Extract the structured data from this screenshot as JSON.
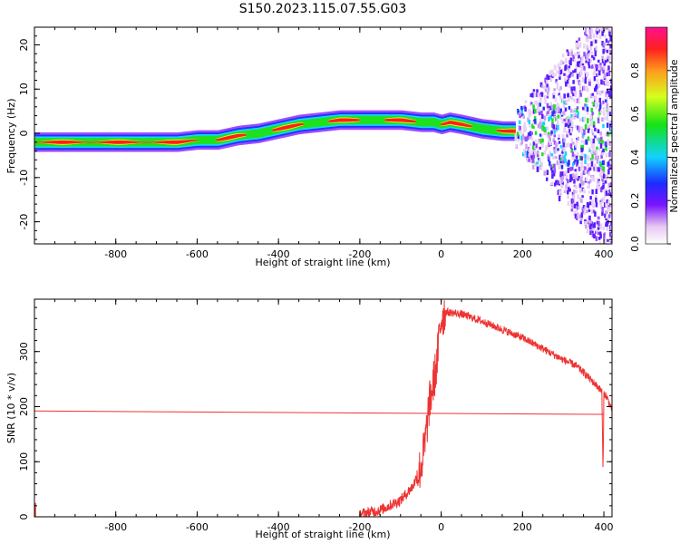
{
  "figure": {
    "title": "S150.2023.115.07.55.G03"
  },
  "chart_data": [
    {
      "type": "heatmap",
      "xlabel": "Height of straight line (km)",
      "ylabel": "Frequency (Hz)",
      "xlim": [
        -1000,
        420
      ],
      "ylim": [
        -25,
        24
      ],
      "xticks": [
        -800,
        -600,
        -400,
        -200,
        0,
        200,
        400
      ],
      "yticks": [
        -20,
        -10,
        0,
        10,
        20
      ],
      "colorbar": {
        "label": "Normalized spectral amplitude",
        "range": [
          0.0,
          1.0
        ],
        "ticks": [
          0.0,
          0.2,
          0.4,
          0.6,
          0.8
        ],
        "colormap": "white-purple-blue-cyan-green-yellow-orange-red-magenta"
      },
      "ridge": {
        "x": [
          -1000,
          -800,
          -700,
          -650,
          -600,
          -550,
          -500,
          -450,
          -400,
          -350,
          -300,
          -250,
          -200,
          -150,
          -100,
          -50,
          -20,
          0,
          20,
          50,
          100,
          150,
          180
        ],
        "frequency": [
          -2,
          -2,
          -2,
          -2,
          -1.5,
          -1.5,
          -0.5,
          0,
          1,
          2,
          2.5,
          3,
          3,
          3,
          3,
          2.5,
          2.5,
          2,
          2.5,
          2,
          1,
          0.5,
          0.5
        ]
      },
      "noise_region_x": [
        180,
        420
      ]
    },
    {
      "type": "line",
      "xlabel": "Height of straight line (km)",
      "ylabel": "SNR (10 * v/v)",
      "xlim": [
        -1000,
        420
      ],
      "ylim": [
        0,
        395
      ],
      "xticks": [
        -800,
        -600,
        -400,
        -200,
        0,
        200,
        400
      ],
      "yticks": [
        0,
        100,
        200,
        300
      ],
      "series": [
        {
          "color": "#ee3333",
          "x": [
            -1000,
            -200,
            -150,
            -100,
            -70,
            -50,
            -40,
            -30,
            -20,
            -10,
            -5,
            0,
            10,
            30,
            50,
            100,
            150,
            200,
            250,
            300,
            330,
            350,
            380,
            395,
            398,
            400,
            405,
            420
          ],
          "y": [
            0,
            5,
            12,
            30,
            55,
            90,
            130,
            200,
            240,
            280,
            330,
            360,
            372,
            370,
            368,
            355,
            340,
            325,
            305,
            285,
            275,
            262,
            240,
            228,
            80,
            225,
            220,
            195
          ]
        },
        {
          "color": "#ee3333",
          "x": [
            -1000,
            400
          ],
          "y": [
            192,
            186
          ]
        }
      ]
    }
  ]
}
